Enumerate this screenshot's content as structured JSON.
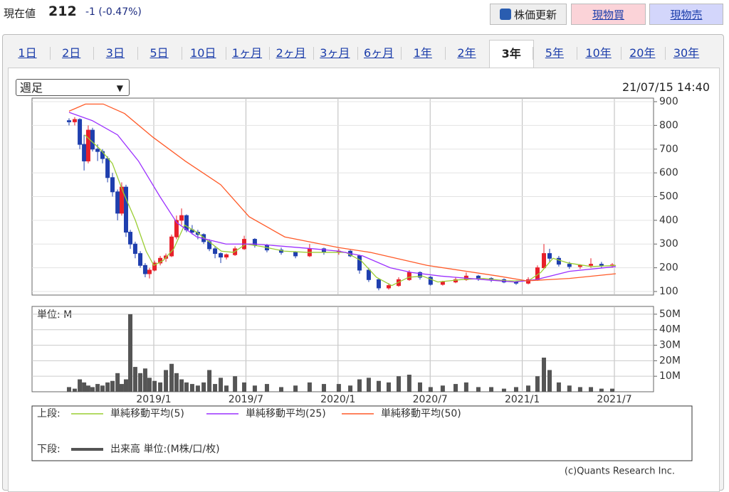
{
  "header": {
    "label": "現在値",
    "price": 212,
    "change": "-1 (-0.47%)",
    "buttons": {
      "refresh": "株価更新",
      "buy": "現物買",
      "sell": "現物売"
    }
  },
  "tabs": [
    "1日",
    "2日",
    "3日",
    "5日",
    "10日",
    "1ヶ月",
    "2ヶ月",
    "3ヶ月",
    "6ヶ月",
    "1年",
    "2年",
    "3年",
    "5年",
    "10年",
    "20年",
    "30年"
  ],
  "active_tab": 11,
  "period_select": "週足",
  "timestamp": "21/07/15 14:40",
  "copyright": "(c)Quants Research Inc.",
  "chart_data": {
    "type": "candlestick",
    "up_color": "#e8202a",
    "down_color": "#1f3fae",
    "x": [
      6.48,
      6.85,
      7.18,
      7.46,
      7.73,
      8.01,
      8.34,
      8.66,
      8.99,
      9.31,
      9.64,
      9.91,
      10.19,
      10.47,
      10.79,
      11.12,
      11.44,
      11.72,
      12.05,
      12.42,
      12.79,
      13.16,
      13.48,
      13.81,
      14.13,
      14.5,
      14.87,
      15.25,
      15.62,
      15.99,
      16.36,
      16.73,
      17.29,
      17.89,
      18.58,
      19.37,
      20.3,
      21.23,
      22.15,
      23.08,
      24.05,
      24.8,
      25.4,
      26.0,
      26.65,
      27.3,
      27.95,
      28.64,
      29.34,
      30.03,
      30.82,
      31.66,
      32.35,
      33.14,
      33.98,
      34.81,
      35.6,
      36.39,
      36.99,
      37.41,
      37.78,
      38.38,
      39.07,
      39.77,
      40.47,
      41.16,
      41.86
    ],
    "open": [
      820,
      815,
      825,
      720,
      650,
      780,
      700,
      690,
      660,
      580,
      520,
      430,
      540,
      350,
      300,
      260,
      210,
      175,
      190,
      220,
      240,
      250,
      330,
      400,
      420,
      360,
      350,
      340,
      310,
      280,
      260,
      245,
      255,
      280,
      320,
      295,
      275,
      265,
      250,
      280,
      265,
      270,
      250,
      190,
      150,
      115,
      125,
      150,
      180,
      160,
      130,
      140,
      150,
      165,
      155,
      150,
      140,
      135,
      150,
      200,
      260,
      240,
      215,
      205,
      210,
      215,
      210
    ],
    "high": [
      830,
      835,
      830,
      760,
      800,
      790,
      720,
      700,
      670,
      600,
      530,
      560,
      550,
      360,
      310,
      270,
      220,
      200,
      230,
      250,
      260,
      340,
      420,
      450,
      425,
      380,
      360,
      345,
      320,
      290,
      265,
      260,
      290,
      335,
      325,
      300,
      285,
      270,
      300,
      285,
      280,
      275,
      255,
      200,
      155,
      135,
      160,
      190,
      185,
      165,
      145,
      160,
      180,
      170,
      160,
      155,
      145,
      160,
      210,
      300,
      280,
      250,
      225,
      215,
      240,
      225,
      220
    ],
    "low": [
      800,
      800,
      700,
      610,
      640,
      690,
      650,
      640,
      560,
      500,
      400,
      420,
      330,
      280,
      240,
      200,
      160,
      155,
      185,
      210,
      225,
      245,
      320,
      380,
      350,
      340,
      320,
      300,
      270,
      240,
      220,
      235,
      250,
      275,
      285,
      265,
      255,
      240,
      245,
      255,
      255,
      245,
      175,
      140,
      105,
      108,
      120,
      145,
      150,
      125,
      125,
      135,
      145,
      145,
      140,
      135,
      128,
      130,
      145,
      195,
      225,
      205,
      195,
      195,
      200,
      200,
      200
    ],
    "close": [
      815,
      825,
      720,
      650,
      780,
      700,
      690,
      660,
      580,
      520,
      430,
      540,
      350,
      300,
      260,
      210,
      175,
      190,
      220,
      240,
      250,
      330,
      400,
      420,
      360,
      350,
      340,
      310,
      280,
      260,
      245,
      255,
      280,
      320,
      295,
      275,
      265,
      250,
      280,
      265,
      270,
      250,
      190,
      150,
      115,
      125,
      150,
      180,
      160,
      130,
      140,
      150,
      165,
      155,
      150,
      140,
      135,
      150,
      200,
      260,
      240,
      215,
      205,
      210,
      215,
      210,
      212
    ],
    "xlim": [
      4.07,
      44.55
    ],
    "xticks": [
      {
        "value": 12,
        "label": "2019/1"
      },
      {
        "value": 18,
        "label": "2019/7"
      },
      {
        "value": 24,
        "label": "2020/1"
      },
      {
        "value": 30,
        "label": "2020/7"
      },
      {
        "value": 36,
        "label": "2021/1"
      },
      {
        "value": 42,
        "label": "2021/7"
      }
    ],
    "ylim": [
      85,
      915
    ],
    "yticks": [
      100,
      200,
      300,
      400,
      500,
      600,
      700,
      800,
      900
    ],
    "grid": true,
    "legend_upper": "上段:",
    "legend_lower": "下段:",
    "series": [
      {
        "name": "単純移動平均(5)",
        "color": "#9acd32",
        "x": [
          7.5,
          8.5,
          9.3,
          10.0,
          10.8,
          11.5,
          12.0,
          12.6,
          13.3,
          14.0,
          14.8,
          15.6,
          16.4,
          17.2,
          18.0,
          19.0,
          20.5,
          22,
          23.5,
          24.5,
          25.5,
          26.5,
          27.5,
          28.6,
          29.5,
          30.5,
          32,
          33.5,
          35,
          36.4,
          37.2,
          38,
          39,
          40.5,
          42.1
        ],
        "values": [
          760,
          700,
          640,
          520,
          400,
          270,
          210,
          230,
          280,
          380,
          350,
          310,
          270,
          265,
          300,
          290,
          270,
          265,
          265,
          265,
          230,
          160,
          125,
          160,
          165,
          140,
          150,
          155,
          145,
          145,
          180,
          240,
          220,
          205,
          210
        ]
      },
      {
        "name": "単純移動平均(25)",
        "color": "#9b30ff",
        "x": [
          6.48,
          8.0,
          9.64,
          11.0,
          12.4,
          13.5,
          14.8,
          16.7,
          18.58,
          20.53,
          22.4,
          24.05,
          25.6,
          27.4,
          28.8,
          30.7,
          33.5,
          35.5,
          36.9,
          39.07,
          42.09
        ],
        "values": [
          855,
          820,
          760,
          650,
          500,
          390,
          330,
          300,
          300,
          290,
          280,
          270,
          250,
          200,
          180,
          165,
          150,
          140,
          150,
          185,
          205
        ]
      },
      {
        "name": "単純移動平均(50)",
        "color": "#ff5a28",
        "x": [
          6.48,
          7.55,
          8.71,
          10.1,
          11.95,
          14.04,
          16.36,
          18.21,
          20.53,
          24.05,
          26.09,
          29.8,
          34.44,
          36.29,
          39.07,
          42.09
        ],
        "values": [
          860,
          890,
          890,
          850,
          750,
          650,
          550,
          415,
          330,
          285,
          265,
          210,
          165,
          145,
          155,
          175
        ]
      }
    ],
    "volume": {
      "name": "出来高 単位:(M株/口/枚)",
      "unit_label": "単位: M",
      "color": "#555555",
      "values": [
        3,
        2,
        8,
        6,
        4,
        3,
        5,
        4,
        6,
        7,
        12,
        5,
        8,
        50,
        16,
        12,
        15,
        9,
        7,
        6,
        14,
        18,
        12,
        8,
        6,
        5,
        4,
        6,
        14,
        5,
        9,
        4,
        10,
        6,
        4,
        5,
        3,
        4,
        6,
        5,
        5,
        4,
        8,
        9,
        7,
        6,
        10,
        11,
        6,
        3,
        4,
        5,
        6,
        3,
        3,
        2,
        3,
        4,
        10,
        22,
        14,
        6,
        4,
        3,
        3,
        2,
        2
      ],
      "ylim": [
        0,
        55
      ],
      "yticks": [
        {
          "value": 10,
          "label": "10M"
        },
        {
          "value": 20,
          "label": "20M"
        },
        {
          "value": 30,
          "label": "30M"
        },
        {
          "value": 40,
          "label": "40M"
        },
        {
          "value": 50,
          "label": "50M"
        }
      ]
    }
  }
}
